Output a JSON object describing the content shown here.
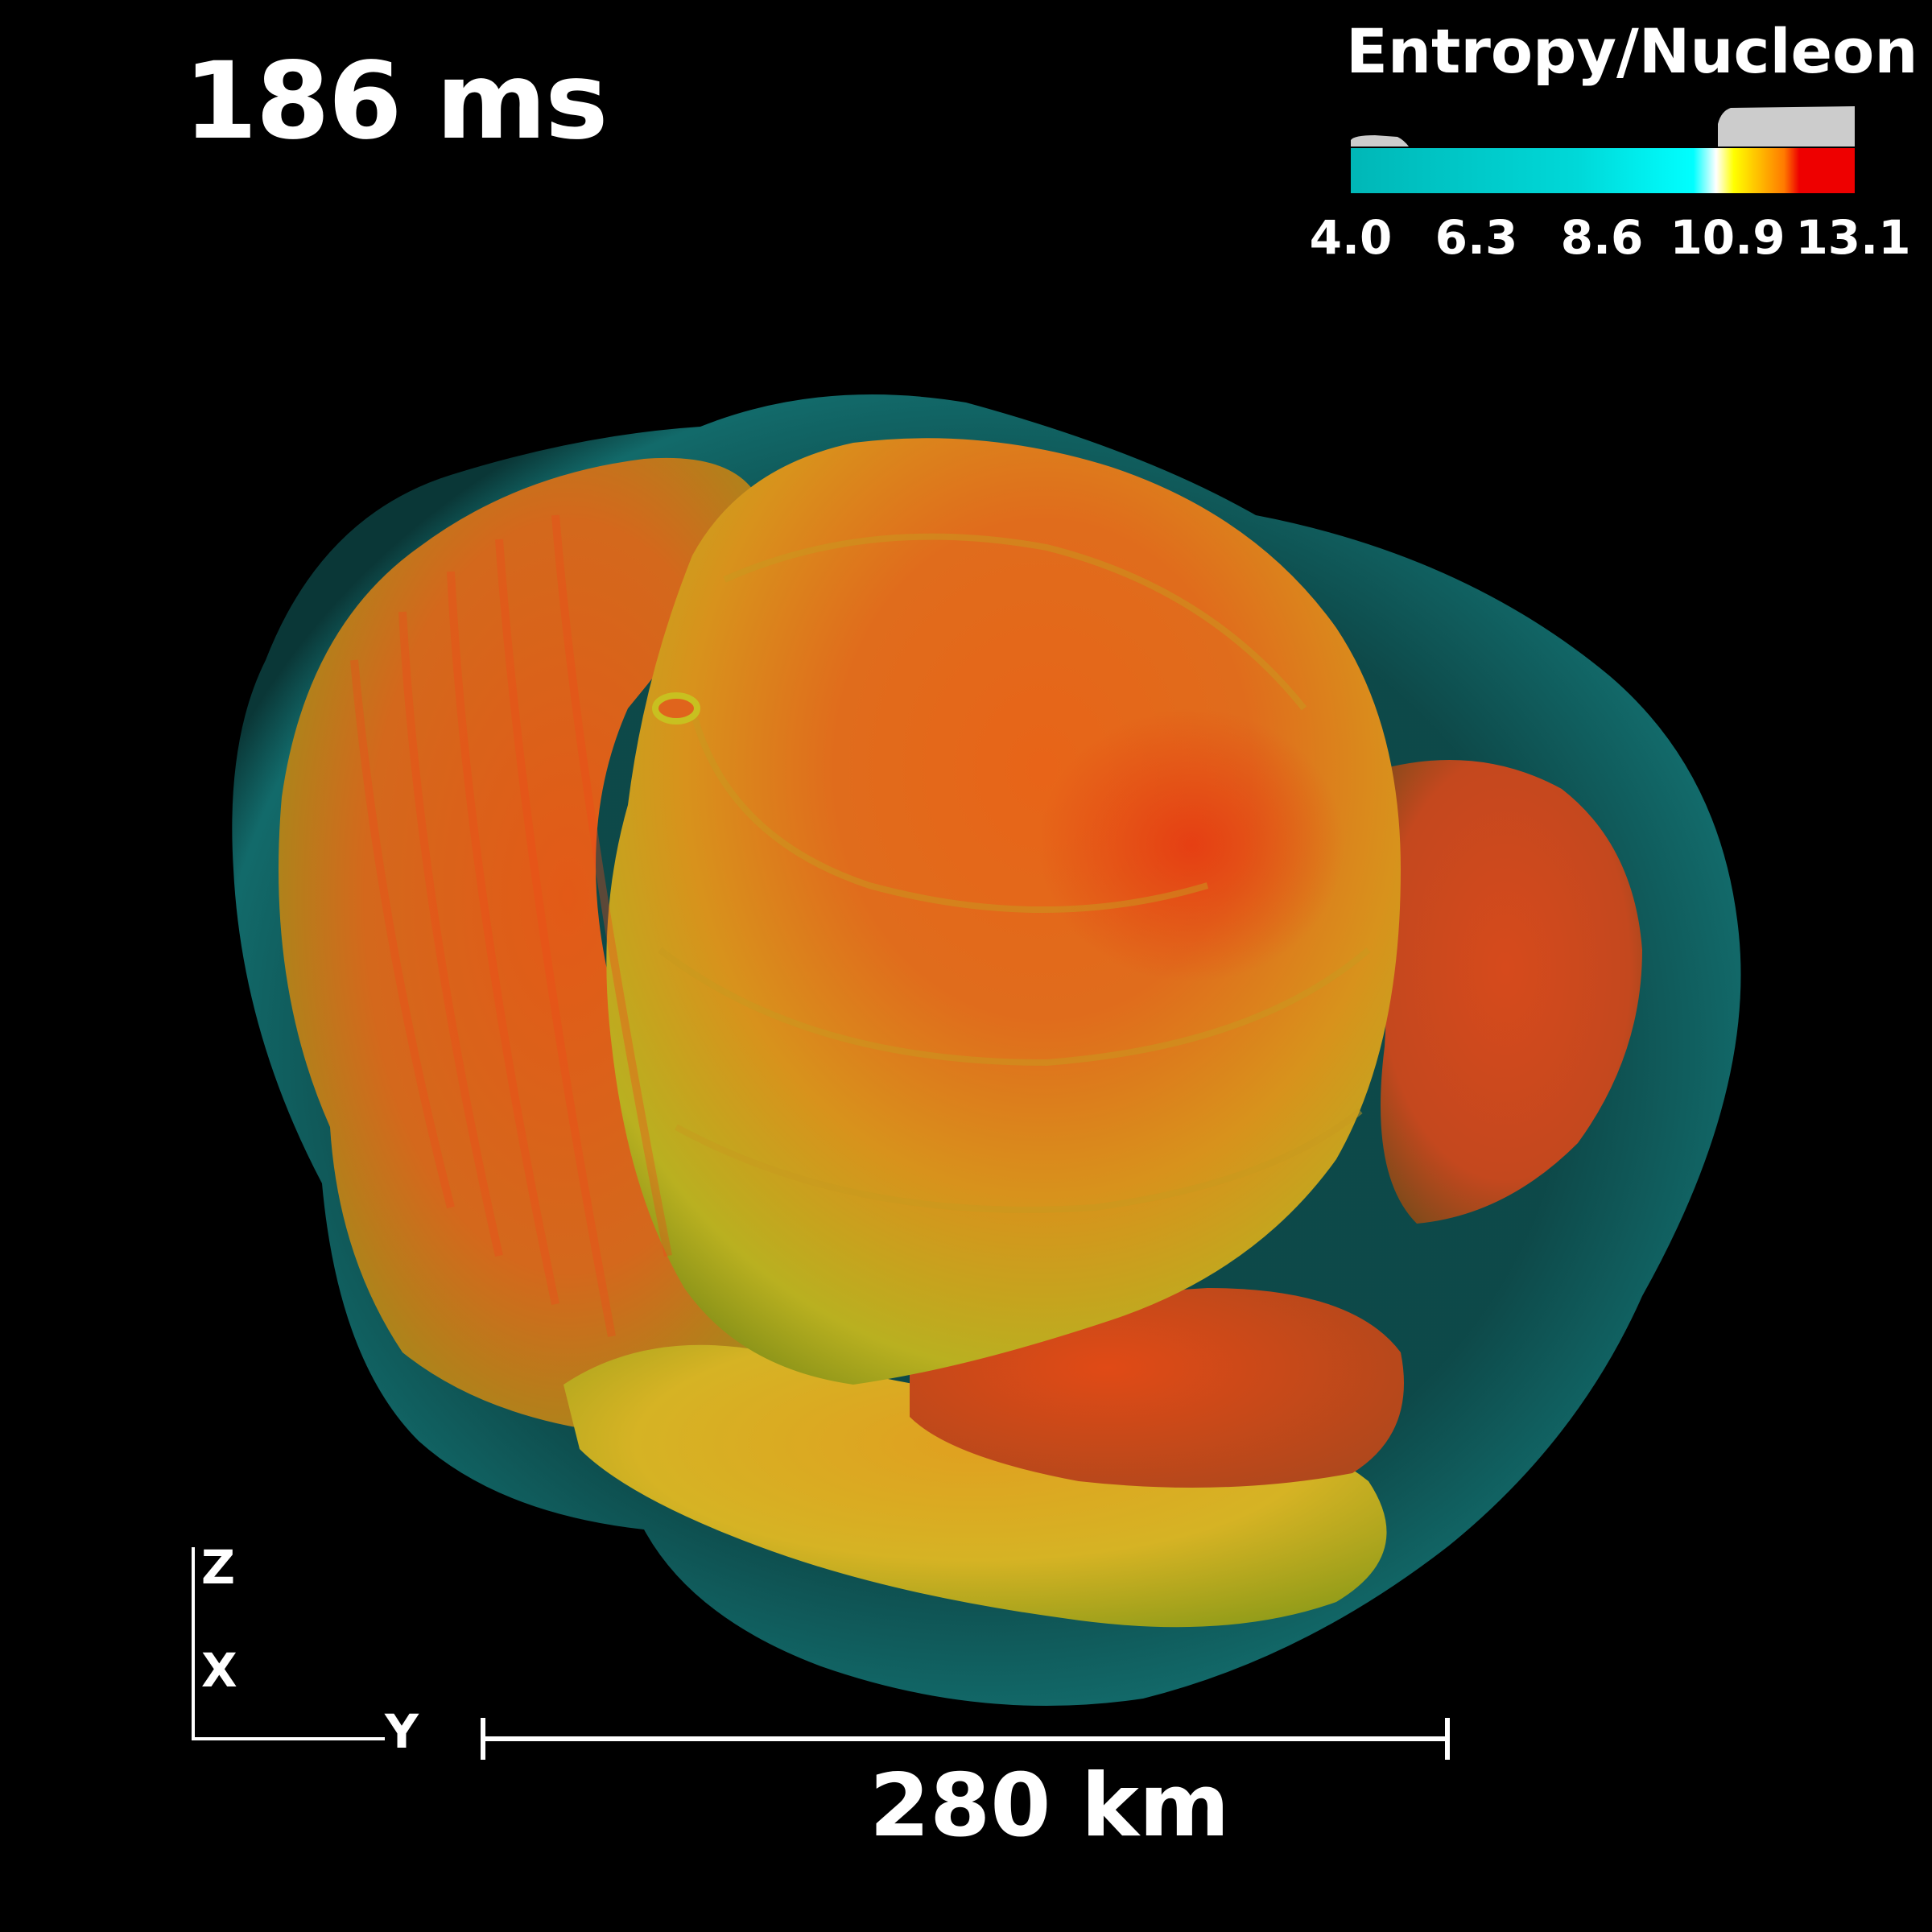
{
  "time_label": "186 ms",
  "legend": {
    "title": "Entropy/Nucleon",
    "ticks": [
      "4.0",
      "6.3",
      "8.6",
      "10.9",
      "13.1"
    ],
    "colors": {
      "low": "#00b7b7",
      "mid": "#00ffff",
      "white": "#ffffff",
      "yellow": "#ffff00",
      "orange": "#ff8800",
      "high": "#ee0000",
      "opacity_histogram": "#cccccc"
    }
  },
  "axes": {
    "vertical_top": "Z",
    "vertical_mid": "X",
    "horizontal": "Y"
  },
  "scale_bar": {
    "label": "280 km"
  },
  "colors": {
    "background": "#000000",
    "shock_shell": "#0f5b5b",
    "plume_orange": "#e4641c",
    "plume_yellow": "#c8c020",
    "plume_red": "#d83a12"
  }
}
